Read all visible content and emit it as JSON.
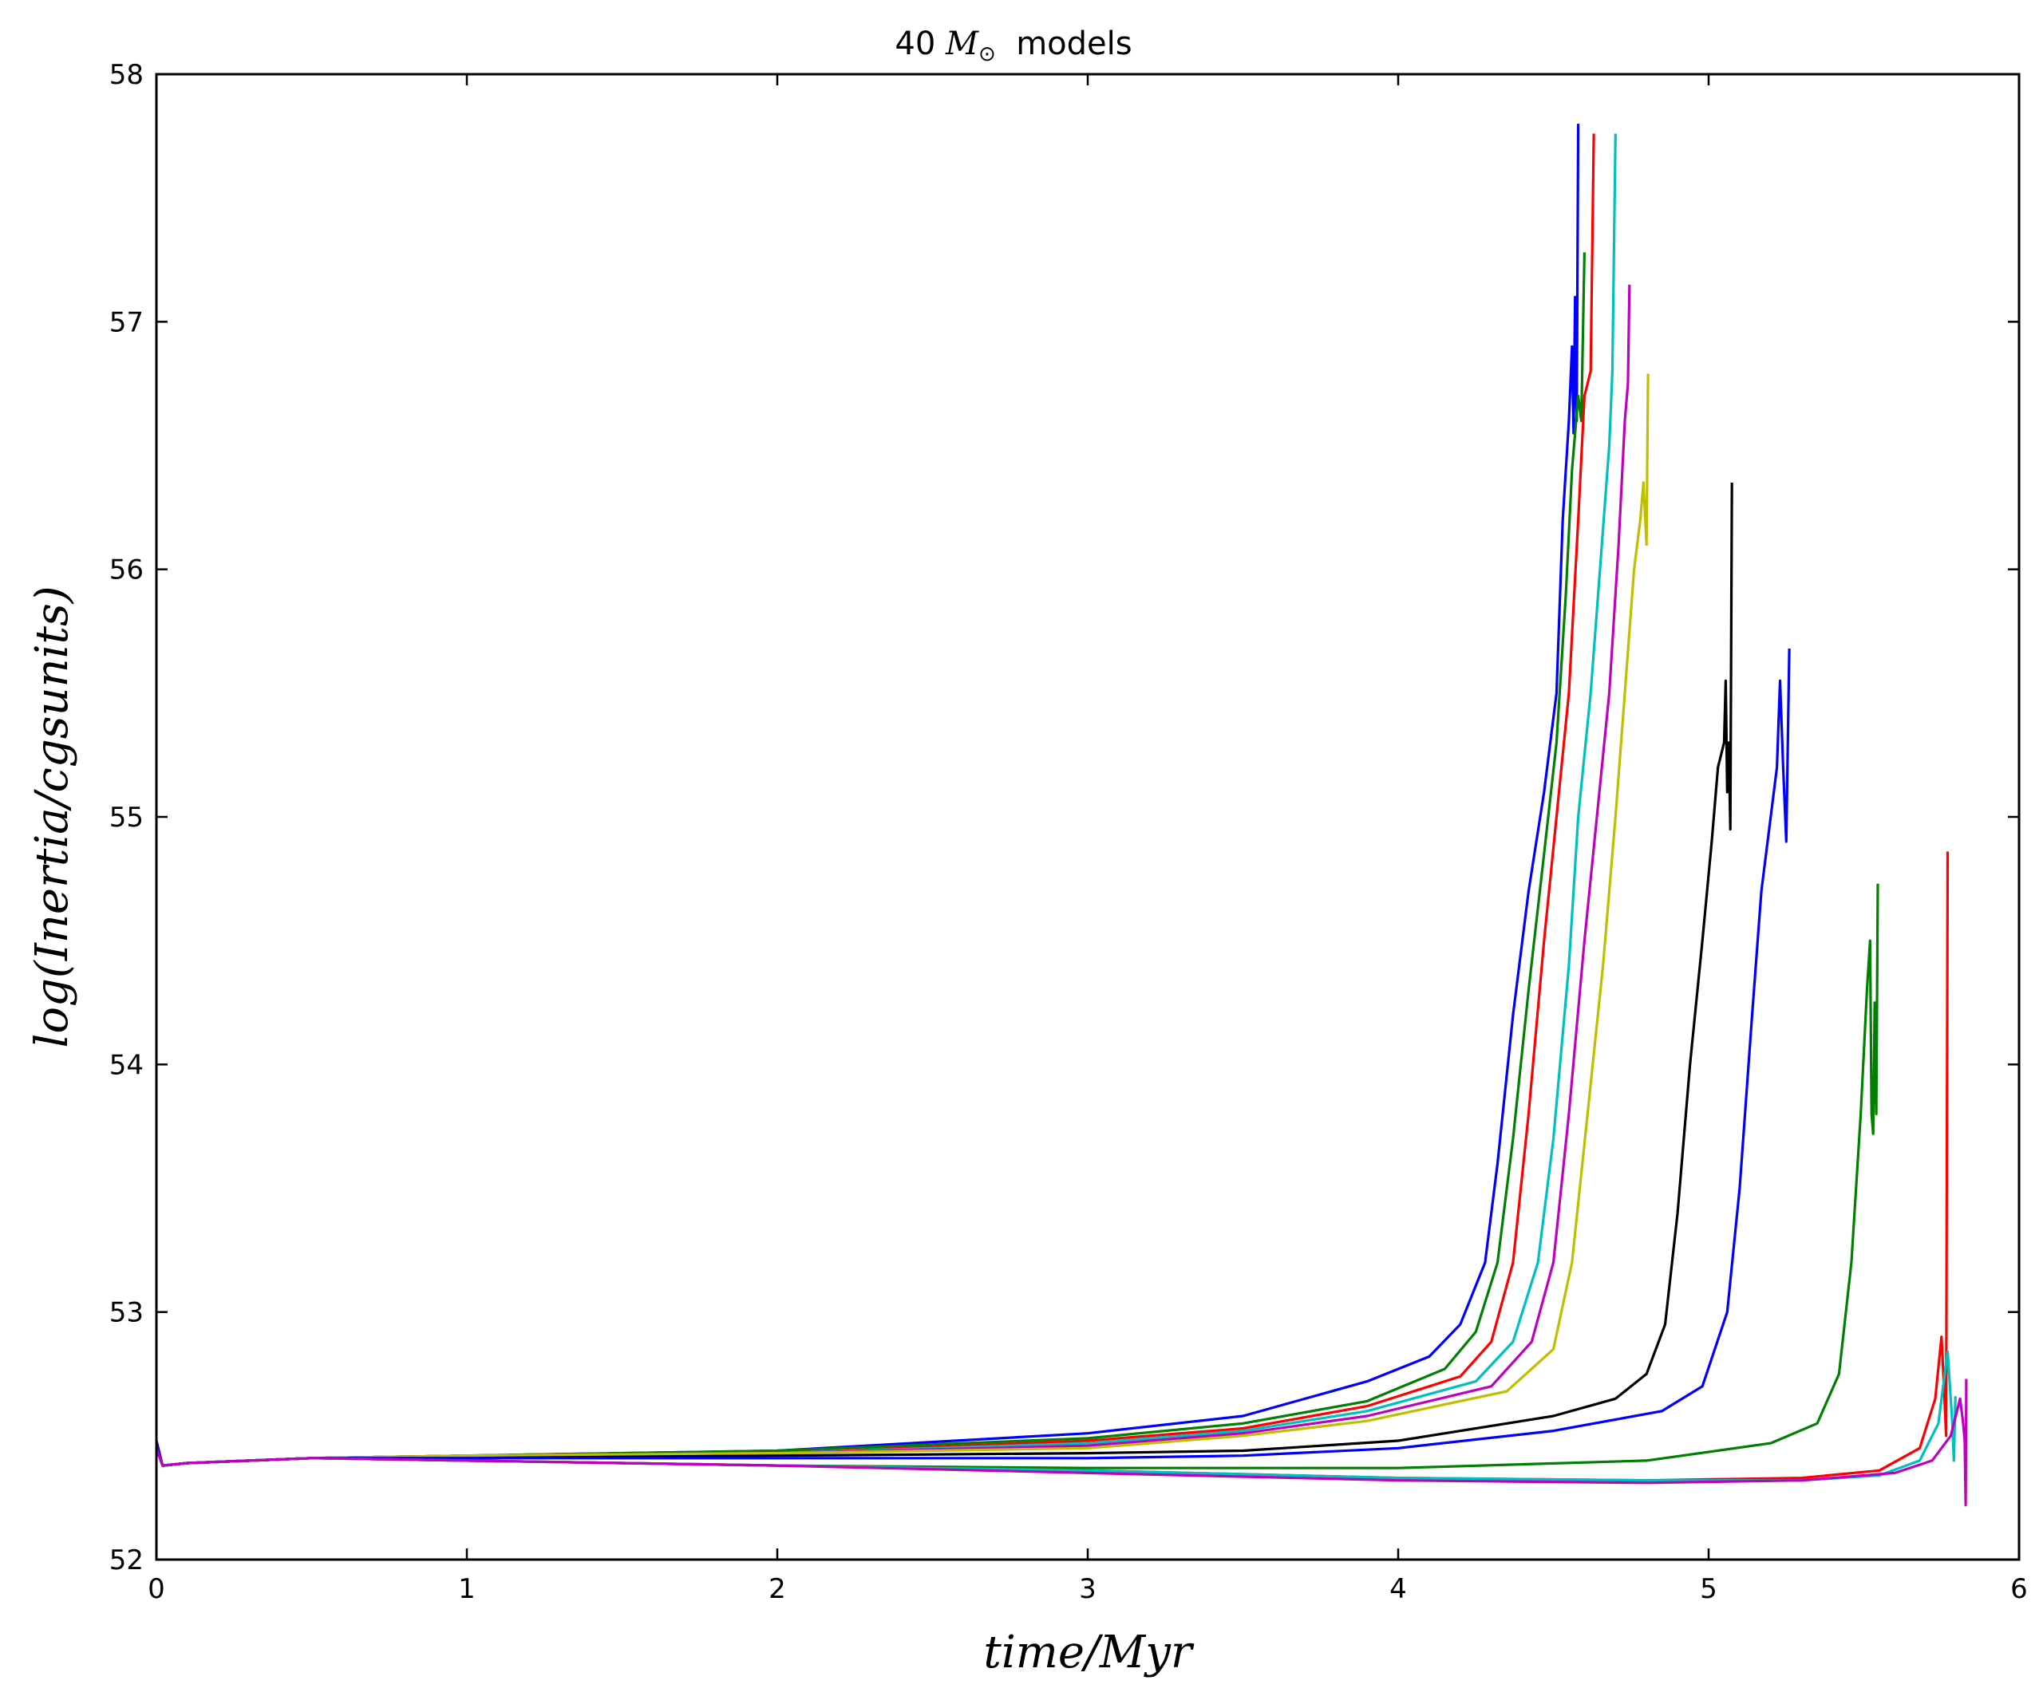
{
  "chart_data": {
    "type": "line",
    "title": {
      "prefix": "40 ",
      "symbol": "M",
      "subscript": "⊙",
      "suffix": "  models"
    },
    "xlabel": "time/Myr",
    "ylabel": "log(Inertia/cgsunits)",
    "xlim": [
      0,
      6
    ],
    "ylim": [
      52,
      58
    ],
    "xticks": [
      "0",
      "1",
      "2",
      "3",
      "4",
      "5",
      "6"
    ],
    "yticks": [
      "52",
      "53",
      "54",
      "55",
      "56",
      "57",
      "58"
    ],
    "grid": false,
    "series": [
      {
        "color": "#0000ff",
        "points": [
          [
            0,
            52.48
          ],
          [
            0.02,
            52.38
          ],
          [
            0.1,
            52.39
          ],
          [
            0.5,
            52.41
          ],
          [
            1,
            52.42
          ],
          [
            2,
            52.44
          ],
          [
            3,
            52.51
          ],
          [
            3.5,
            52.58
          ],
          [
            3.9,
            52.72
          ],
          [
            4.1,
            52.82
          ],
          [
            4.2,
            52.95
          ],
          [
            4.28,
            53.2
          ],
          [
            4.32,
            53.6
          ],
          [
            4.37,
            54.2
          ],
          [
            4.42,
            54.7
          ],
          [
            4.47,
            55.1
          ],
          [
            4.51,
            55.5
          ],
          [
            4.53,
            56.2
          ],
          [
            4.55,
            56.6
          ],
          [
            4.56,
            56.9
          ],
          [
            4.565,
            56.55
          ],
          [
            4.57,
            57.1
          ],
          [
            4.575,
            56.6
          ],
          [
            4.58,
            57.8
          ]
        ]
      },
      {
        "color": "#007f00",
        "points": [
          [
            0,
            52.45
          ],
          [
            0.02,
            52.38
          ],
          [
            0.1,
            52.39
          ],
          [
            0.5,
            52.41
          ],
          [
            1,
            52.42
          ],
          [
            2,
            52.44
          ],
          [
            3,
            52.49
          ],
          [
            3.5,
            52.55
          ],
          [
            3.9,
            52.64
          ],
          [
            4.15,
            52.77
          ],
          [
            4.25,
            52.92
          ],
          [
            4.32,
            53.2
          ],
          [
            4.37,
            53.7
          ],
          [
            4.42,
            54.3
          ],
          [
            4.47,
            54.85
          ],
          [
            4.51,
            55.3
          ],
          [
            4.54,
            55.9
          ],
          [
            4.56,
            56.4
          ],
          [
            4.58,
            56.7
          ],
          [
            4.59,
            56.6
          ],
          [
            4.6,
            57.28
          ]
        ]
      },
      {
        "color": "#ff0000",
        "points": [
          [
            0,
            52.45
          ],
          [
            0.02,
            52.38
          ],
          [
            0.1,
            52.39
          ],
          [
            0.5,
            52.41
          ],
          [
            1,
            52.42
          ],
          [
            2,
            52.43
          ],
          [
            3,
            52.48
          ],
          [
            3.5,
            52.53
          ],
          [
            3.9,
            52.62
          ],
          [
            4.2,
            52.74
          ],
          [
            4.3,
            52.88
          ],
          [
            4.37,
            53.2
          ],
          [
            4.42,
            53.8
          ],
          [
            4.47,
            54.5
          ],
          [
            4.51,
            55.0
          ],
          [
            4.55,
            55.5
          ],
          [
            4.58,
            56.2
          ],
          [
            4.6,
            56.7
          ],
          [
            4.62,
            56.8
          ],
          [
            4.63,
            57.76
          ]
        ]
      },
      {
        "color": "#00bfbf",
        "points": [
          [
            0,
            52.45
          ],
          [
            0.02,
            52.38
          ],
          [
            0.1,
            52.39
          ],
          [
            0.5,
            52.41
          ],
          [
            1,
            52.42
          ],
          [
            2,
            52.43
          ],
          [
            3,
            52.47
          ],
          [
            3.5,
            52.52
          ],
          [
            3.9,
            52.6
          ],
          [
            4.25,
            52.72
          ],
          [
            4.37,
            52.88
          ],
          [
            4.45,
            53.2
          ],
          [
            4.5,
            53.7
          ],
          [
            4.55,
            54.4
          ],
          [
            4.58,
            55.0
          ],
          [
            4.62,
            55.5
          ],
          [
            4.65,
            56.0
          ],
          [
            4.68,
            56.5
          ],
          [
            4.69,
            56.8
          ],
          [
            4.7,
            57.76
          ]
        ]
      },
      {
        "color": "#bf00bf",
        "points": [
          [
            0,
            52.45
          ],
          [
            0.02,
            52.38
          ],
          [
            0.1,
            52.39
          ],
          [
            0.5,
            52.41
          ],
          [
            1,
            52.42
          ],
          [
            2,
            52.43
          ],
          [
            3,
            52.46
          ],
          [
            3.5,
            52.51
          ],
          [
            3.9,
            52.58
          ],
          [
            4.3,
            52.7
          ],
          [
            4.43,
            52.88
          ],
          [
            4.5,
            53.2
          ],
          [
            4.55,
            53.8
          ],
          [
            4.6,
            54.5
          ],
          [
            4.64,
            55.0
          ],
          [
            4.68,
            55.5
          ],
          [
            4.71,
            56.1
          ],
          [
            4.73,
            56.6
          ],
          [
            4.74,
            56.75
          ],
          [
            4.745,
            57.15
          ]
        ]
      },
      {
        "color": "#bfbf00",
        "points": [
          [
            0,
            52.45
          ],
          [
            0.02,
            52.38
          ],
          [
            0.1,
            52.39
          ],
          [
            0.5,
            52.41
          ],
          [
            1,
            52.42
          ],
          [
            2,
            52.43
          ],
          [
            3,
            52.45
          ],
          [
            3.5,
            52.5
          ],
          [
            3.9,
            52.56
          ],
          [
            4.35,
            52.68
          ],
          [
            4.5,
            52.85
          ],
          [
            4.56,
            53.2
          ],
          [
            4.61,
            53.8
          ],
          [
            4.66,
            54.4
          ],
          [
            4.7,
            55.0
          ],
          [
            4.73,
            55.5
          ],
          [
            4.76,
            56.0
          ],
          [
            4.78,
            56.2
          ],
          [
            4.79,
            56.35
          ],
          [
            4.8,
            56.1
          ],
          [
            4.805,
            56.79
          ]
        ]
      },
      {
        "color": "#000000",
        "points": [
          [
            0,
            52.45
          ],
          [
            0.02,
            52.38
          ],
          [
            0.1,
            52.39
          ],
          [
            0.5,
            52.41
          ],
          [
            1,
            52.41
          ],
          [
            2,
            52.42
          ],
          [
            3,
            52.43
          ],
          [
            3.5,
            52.44
          ],
          [
            4,
            52.48
          ],
          [
            4.5,
            52.58
          ],
          [
            4.7,
            52.65
          ],
          [
            4.8,
            52.75
          ],
          [
            4.86,
            52.95
          ],
          [
            4.9,
            53.4
          ],
          [
            4.94,
            54.0
          ],
          [
            4.98,
            54.5
          ],
          [
            5.01,
            54.9
          ],
          [
            5.03,
            55.2
          ],
          [
            5.05,
            55.3
          ],
          [
            5.055,
            55.55
          ],
          [
            5.06,
            55.1
          ],
          [
            5.065,
            55.3
          ],
          [
            5.07,
            54.95
          ],
          [
            5.075,
            56.35
          ]
        ]
      },
      {
        "color": "#0000ff",
        "points": [
          [
            0,
            52.45
          ],
          [
            0.02,
            52.38
          ],
          [
            0.1,
            52.39
          ],
          [
            0.5,
            52.41
          ],
          [
            1,
            52.41
          ],
          [
            2,
            52.41
          ],
          [
            3,
            52.41
          ],
          [
            3.5,
            52.42
          ],
          [
            4,
            52.45
          ],
          [
            4.5,
            52.52
          ],
          [
            4.85,
            52.6
          ],
          [
            4.98,
            52.7
          ],
          [
            5.06,
            53.0
          ],
          [
            5.1,
            53.5
          ],
          [
            5.14,
            54.2
          ],
          [
            5.17,
            54.7
          ],
          [
            5.2,
            55.0
          ],
          [
            5.22,
            55.2
          ],
          [
            5.23,
            55.55
          ],
          [
            5.24,
            55.2
          ],
          [
            5.25,
            54.9
          ],
          [
            5.26,
            55.68
          ]
        ]
      },
      {
        "color": "#007f00",
        "points": [
          [
            0,
            52.45
          ],
          [
            0.02,
            52.38
          ],
          [
            0.1,
            52.39
          ],
          [
            0.5,
            52.41
          ],
          [
            1,
            52.4
          ],
          [
            2,
            52.38
          ],
          [
            3,
            52.37
          ],
          [
            4,
            52.37
          ],
          [
            4.8,
            52.4
          ],
          [
            5.2,
            52.47
          ],
          [
            5.35,
            52.55
          ],
          [
            5.42,
            52.75
          ],
          [
            5.46,
            53.2
          ],
          [
            5.49,
            53.8
          ],
          [
            5.51,
            54.3
          ],
          [
            5.52,
            54.5
          ],
          [
            5.525,
            53.8
          ],
          [
            5.53,
            53.72
          ],
          [
            5.535,
            54.25
          ],
          [
            5.54,
            53.8
          ],
          [
            5.545,
            54.73
          ]
        ]
      },
      {
        "color": "#ff0000",
        "points": [
          [
            0,
            52.45
          ],
          [
            0.02,
            52.38
          ],
          [
            0.1,
            52.39
          ],
          [
            0.5,
            52.41
          ],
          [
            1,
            52.4
          ],
          [
            2,
            52.38
          ],
          [
            3,
            52.36
          ],
          [
            4,
            52.33
          ],
          [
            4.8,
            52.32
          ],
          [
            5.3,
            52.33
          ],
          [
            5.55,
            52.36
          ],
          [
            5.68,
            52.45
          ],
          [
            5.73,
            52.65
          ],
          [
            5.75,
            52.9
          ],
          [
            5.76,
            52.65
          ],
          [
            5.765,
            52.5
          ],
          [
            5.77,
            54.86
          ]
        ]
      },
      {
        "color": "#00bfbf",
        "points": [
          [
            0,
            52.45
          ],
          [
            0.02,
            52.38
          ],
          [
            0.1,
            52.39
          ],
          [
            0.5,
            52.41
          ],
          [
            1,
            52.4
          ],
          [
            2,
            52.38
          ],
          [
            3,
            52.36
          ],
          [
            4,
            52.33
          ],
          [
            4.8,
            52.32
          ],
          [
            5.3,
            52.32
          ],
          [
            5.55,
            52.34
          ],
          [
            5.68,
            52.4
          ],
          [
            5.74,
            52.55
          ],
          [
            5.77,
            52.84
          ],
          [
            5.785,
            52.55
          ],
          [
            5.79,
            52.4
          ],
          [
            5.795,
            52.66
          ]
        ]
      },
      {
        "color": "#bf00bf",
        "points": [
          [
            0,
            52.45
          ],
          [
            0.02,
            52.38
          ],
          [
            0.1,
            52.39
          ],
          [
            0.5,
            52.41
          ],
          [
            1,
            52.4
          ],
          [
            2,
            52.38
          ],
          [
            3,
            52.35
          ],
          [
            4,
            52.32
          ],
          [
            4.8,
            52.31
          ],
          [
            5.3,
            52.32
          ],
          [
            5.6,
            52.35
          ],
          [
            5.72,
            52.4
          ],
          [
            5.78,
            52.5
          ],
          [
            5.81,
            52.65
          ],
          [
            5.82,
            52.55
          ],
          [
            5.825,
            52.48
          ],
          [
            5.828,
            52.22
          ],
          [
            5.83,
            52.73
          ]
        ]
      }
    ]
  }
}
